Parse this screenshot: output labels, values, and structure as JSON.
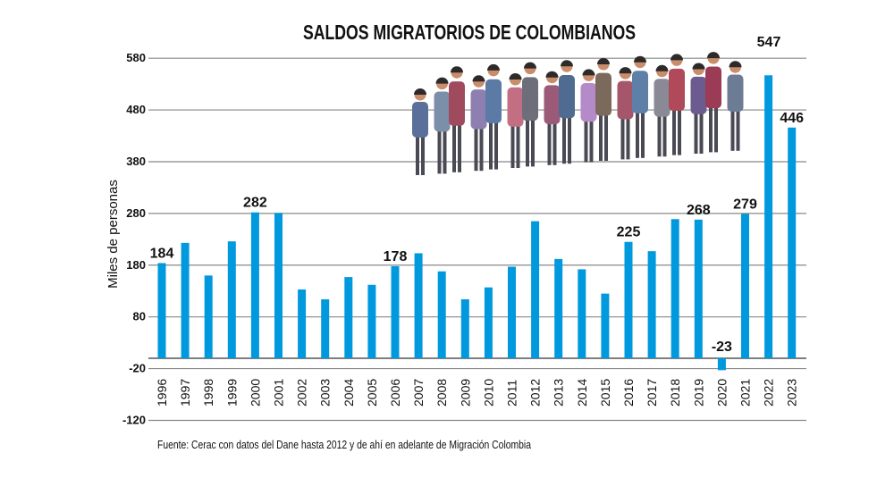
{
  "chart_data": {
    "type": "bar",
    "title": "SALDOS MIGRATORIOS DE COLOMBIANOS",
    "ylabel": "Miles de personas",
    "xlabel": "",
    "ylim": [
      -120,
      580
    ],
    "yticks": [
      580,
      480,
      380,
      280,
      180,
      80,
      -20,
      -120
    ],
    "grid": true,
    "bar_color": "#0099dd",
    "highlight_color": "#d9151b",
    "categories": [
      "1996",
      "1997",
      "1998",
      "1999",
      "2000",
      "2001",
      "2002",
      "2003",
      "2004",
      "2005",
      "2006",
      "2007",
      "2008",
      "2009",
      "2010",
      "2011",
      "2012",
      "2013",
      "2014",
      "2015",
      "2016",
      "2017",
      "2018",
      "2019",
      "2020",
      "2021",
      "2022",
      "2023"
    ],
    "values": [
      184,
      223,
      160,
      226,
      282,
      281,
      133,
      114,
      157,
      142,
      178,
      203,
      168,
      114,
      137,
      177,
      265,
      192,
      172,
      125,
      225,
      207,
      269,
      268,
      -23,
      279,
      547,
      446
    ],
    "data_labels": [
      {
        "year": "1996",
        "text": "184"
      },
      {
        "year": "2000",
        "text": "282"
      },
      {
        "year": "2006",
        "text": "178"
      },
      {
        "year": "2016",
        "text": "225"
      },
      {
        "year": "2019",
        "text": "268"
      },
      {
        "year": "2020",
        "text": "-23"
      },
      {
        "year": "2021",
        "text": "279"
      },
      {
        "year": "2022",
        "text": "547",
        "highlight": true
      },
      {
        "year": "2023",
        "text": "446"
      }
    ],
    "source": "Fuente: Cerac con datos del Dane hasta 2012 y de ahí en adelante de Migración Colombia"
  }
}
